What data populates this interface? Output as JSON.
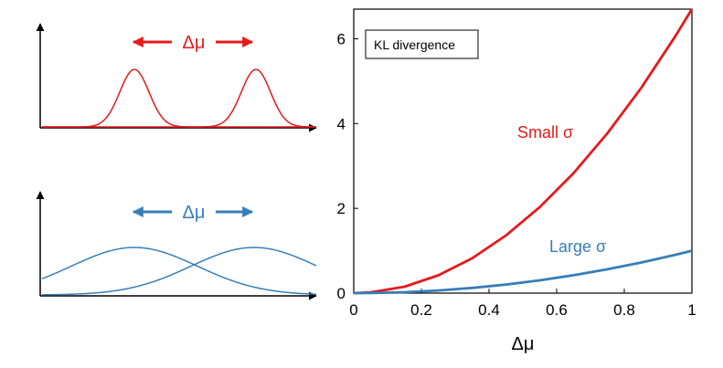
{
  "colors": {
    "red": "#e41a1c",
    "blue": "#377eb8",
    "axis": "#000000"
  },
  "panels": {
    "top": {
      "delta_label": "Δμ",
      "color": "red"
    },
    "bottom": {
      "delta_label": "Δμ",
      "color": "blue"
    }
  },
  "chart_data": [
    {
      "type": "line",
      "title": "",
      "xlabel": "",
      "ylabel": "",
      "legend": {
        "text": "KL divergence",
        "placement": "top-left"
      },
      "xlabel_text": "Δμ",
      "xlim": [
        0,
        1
      ],
      "ylim": [
        0,
        6.7
      ],
      "xticks": [
        0,
        0.2,
        0.4,
        0.6,
        0.8,
        1
      ],
      "xtick_labels": [
        "0",
        "0.2",
        "0.4",
        "0.6",
        "0.8",
        "1"
      ],
      "yticks": [
        0,
        2,
        4,
        6
      ],
      "ytick_labels": [
        "0",
        "2",
        "4",
        "6"
      ],
      "grid": false,
      "series": [
        {
          "name": "Small σ",
          "color": "red",
          "x": [
            0,
            0.05,
            0.15,
            0.25,
            0.35,
            0.45,
            0.55,
            0.65,
            0.75,
            0.85,
            0.95,
            1.0
          ],
          "y": [
            0,
            0.02,
            0.15,
            0.42,
            0.82,
            1.36,
            2.03,
            2.83,
            3.77,
            4.84,
            6.05,
            6.7
          ]
        },
        {
          "name": "Large σ",
          "color": "blue",
          "x": [
            0,
            0.05,
            0.15,
            0.25,
            0.35,
            0.45,
            0.55,
            0.65,
            0.75,
            0.85,
            0.95,
            1.0
          ],
          "y": [
            0,
            0.0025,
            0.0225,
            0.0625,
            0.1225,
            0.2025,
            0.3025,
            0.4225,
            0.5625,
            0.7225,
            0.9025,
            1.0
          ]
        }
      ]
    }
  ]
}
